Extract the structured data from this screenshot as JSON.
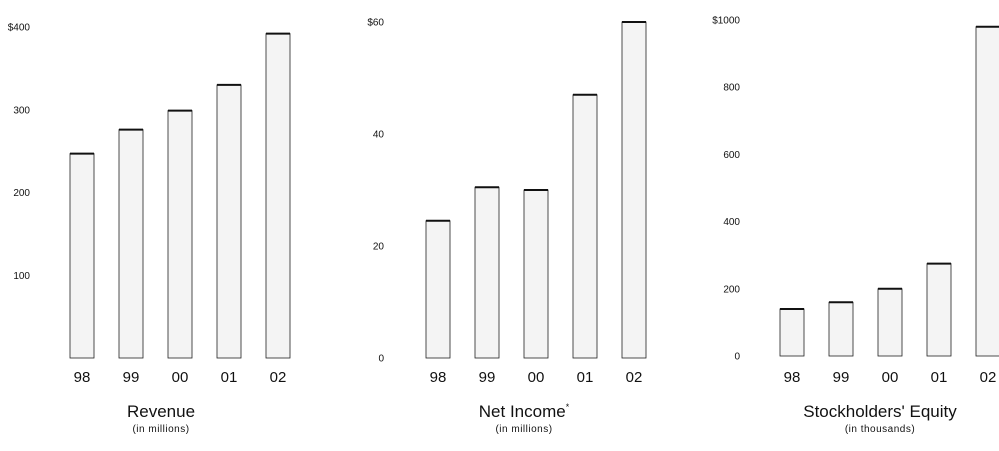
{
  "chart_data": [
    {
      "type": "bar",
      "title": "Revenue",
      "subtitle": "(in millions)",
      "categories": [
        "98",
        "99",
        "00",
        "01",
        "02"
      ],
      "values": [
        247,
        276,
        299,
        330,
        392
      ],
      "ylim": [
        0,
        400
      ],
      "yticks": [
        {
          "value": 0,
          "label": ""
        },
        {
          "value": 100,
          "label": "100"
        },
        {
          "value": 200,
          "label": "200"
        },
        {
          "value": 300,
          "label": "300"
        },
        {
          "value": 400,
          "label": "$400"
        }
      ],
      "grid": false,
      "legend": "none"
    },
    {
      "type": "bar",
      "title": "Net Income",
      "title_marker": "*",
      "subtitle": "(in millions)",
      "categories": [
        "98",
        "99",
        "00",
        "01",
        "02"
      ],
      "values": [
        24.5,
        30.5,
        30,
        47,
        60
      ],
      "ylim": [
        0,
        60
      ],
      "yticks": [
        {
          "value": 0,
          "label": "0"
        },
        {
          "value": 20,
          "label": "20"
        },
        {
          "value": 40,
          "label": "40"
        },
        {
          "value": 60,
          "label": "$60"
        }
      ],
      "grid": false,
      "legend": "none"
    },
    {
      "type": "bar",
      "title": "Stockholders' Equity",
      "subtitle": "(in thousands)",
      "categories": [
        "98",
        "99",
        "00",
        "01",
        "02"
      ],
      "values": [
        140,
        160,
        200,
        275,
        980
      ],
      "ylim": [
        0,
        1000
      ],
      "yticks": [
        {
          "value": 0,
          "label": "0"
        },
        {
          "value": 200,
          "label": "200"
        },
        {
          "value": 400,
          "label": "400"
        },
        {
          "value": 600,
          "label": "600"
        },
        {
          "value": 800,
          "label": "800"
        },
        {
          "value": 1000,
          "label": "$1000"
        }
      ],
      "grid": false,
      "legend": "none"
    }
  ],
  "colors": {
    "bar_fill": "#f4f4f4",
    "bar_hatch": "#2a2a2a",
    "bar_outline": "#222222",
    "text": "#111111"
  }
}
